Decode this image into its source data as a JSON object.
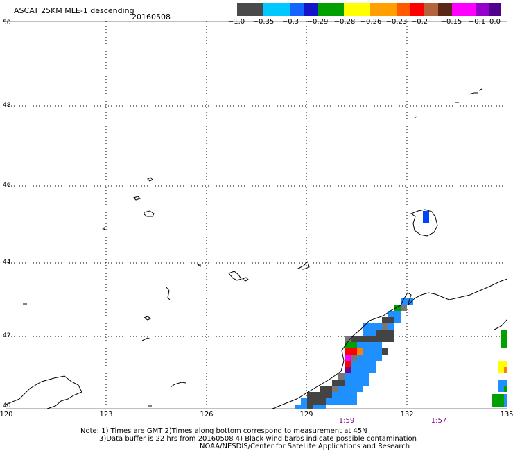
{
  "header": {
    "title": "ASCAT 25KM MLE-1 descending",
    "date": "20160508"
  },
  "color_scale": {
    "swatch_colors": [
      "#4a4a4a",
      "#00c8ff",
      "#1464ff",
      "#1414c8",
      "#00a000",
      "#ffff00",
      "#ffa000",
      "#ff5a00",
      "#ff0000",
      "#b4643c",
      "#5a2814",
      "#ff00ff",
      "#9600c8",
      "#50008c"
    ],
    "labels": [
      "−1.0",
      "−0.35",
      "−0.3",
      "−0.29",
      "−0.28",
      "−0.26",
      "−0.23",
      "−0.2",
      "−0.15",
      "−0.1",
      "0.0"
    ]
  },
  "axes": {
    "lat_labels": [
      "50",
      "48",
      "46",
      "44",
      "42",
      "40"
    ],
    "lon_labels": [
      "120",
      "123",
      "126",
      "129",
      "132",
      "135"
    ],
    "time_labels": [
      "1:59",
      "1:57"
    ]
  },
  "notes": {
    "line1": "Note: 1) Times are GMT 2)Times along bottom correspond to measurement at 45N",
    "line2": "3)Data buffer is 22 hrs from 20160508 4) Black wind barbs indicate possible contamination",
    "line3": "NOAA/NESDIS/Center for Satellite Applications and Research"
  },
  "colors": {
    "gray": "#444444",
    "mid_gray": "#777777",
    "light_blue": "#1e90ff",
    "blue": "#0044ff",
    "green": "#00a000",
    "yellow": "#ffff00",
    "orange": "#ff8000",
    "red": "#ff0000",
    "magenta": "#ff00ff",
    "purple": "#800080"
  }
}
